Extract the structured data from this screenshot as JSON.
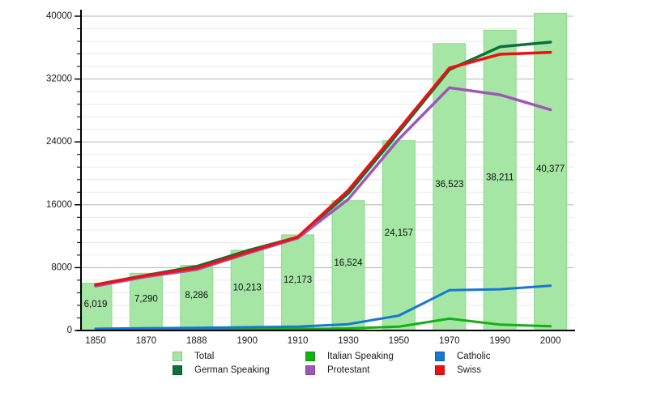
{
  "chart_data": {
    "type": "bar",
    "title": "",
    "categories": [
      "1850",
      "1870",
      "1888",
      "1900",
      "1910",
      "1930",
      "1950",
      "1970",
      "1990",
      "2000"
    ],
    "bar_series": {
      "name": "Total",
      "color": "#a5e6a5",
      "edge_color": "#8cd98c",
      "values": [
        6019,
        7290,
        8286,
        10213,
        12173,
        16524,
        24157,
        36523,
        38211,
        40377
      ],
      "labels": [
        "6,019",
        "7,290",
        "8,286",
        "10,213",
        "12,173",
        "16,524",
        "24,157",
        "36,523",
        "38,211",
        "40,377"
      ]
    },
    "line_series": [
      {
        "name": "German Speaking",
        "color": "#0b7039",
        "stroke_width": 3.5,
        "values": [
          5820,
          7020,
          8150,
          10150,
          11880,
          17450,
          25250,
          33200,
          36100,
          36700
        ]
      },
      {
        "name": "Italian Speaking",
        "color": "#12b212",
        "stroke_width": 3,
        "values": [
          50,
          70,
          100,
          140,
          200,
          260,
          480,
          1500,
          740,
          550
        ]
      },
      {
        "name": "Protestant",
        "color": "#9e57b5",
        "stroke_width": 3.5,
        "values": [
          5650,
          6850,
          7750,
          9800,
          11750,
          16700,
          24350,
          30900,
          30000,
          28100
        ]
      },
      {
        "name": "Catholic",
        "color": "#1777d1",
        "stroke_width": 3,
        "values": [
          220,
          290,
          340,
          410,
          480,
          800,
          1900,
          5120,
          5250,
          5700
        ]
      },
      {
        "name": "Swiss",
        "color": "#ee1111",
        "stroke_width": 3.5,
        "values": [
          5800,
          7000,
          7950,
          9950,
          11900,
          17850,
          25600,
          33400,
          35150,
          35400
        ]
      }
    ],
    "y_axis": {
      "min": 0,
      "max": 40000,
      "major_step": 8000,
      "minor_step": 1600,
      "tick_labels": [
        "0",
        "8000",
        "16000",
        "24000",
        "32000",
        "40000"
      ]
    },
    "grid": true,
    "legend_position": "bottom"
  },
  "legend": {
    "items": [
      {
        "label": "Total"
      },
      {
        "label": "German Speaking"
      },
      {
        "label": "Italian Speaking"
      },
      {
        "label": "Protestant"
      },
      {
        "label": "Catholic"
      },
      {
        "label": "Swiss"
      }
    ]
  }
}
